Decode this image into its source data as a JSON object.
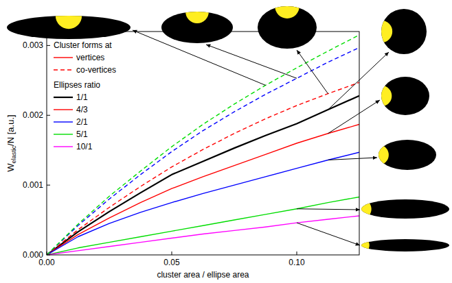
{
  "chart_data": {
    "type": "line",
    "xlabel": "cluster area / ellipse area",
    "ylabel": [
      {
        "text": "W"
      },
      {
        "text": "elastic",
        "sub": true
      },
      {
        "text": "/N [a.u.]"
      }
    ],
    "x": [
      0,
      0.0125,
      0.025,
      0.0375,
      0.05,
      0.0625,
      0.075,
      0.0875,
      0.1,
      0.1125,
      0.125
    ],
    "xlim": [
      0,
      0.125
    ],
    "xticks": [
      {
        "value": 0,
        "label": "0.00"
      },
      0.05,
      {
        "value": 0.1,
        "label": "0.10"
      }
    ],
    "ylim": [
      0,
      0.0032
    ],
    "yticks": [
      {
        "value": 0,
        "label": "0.000"
      },
      {
        "value": 0.001,
        "label": "0.001"
      },
      {
        "value": 0.002,
        "label": "0.002"
      },
      {
        "value": 0.003,
        "label": "0.003"
      }
    ],
    "grid": false,
    "legend": "upper left",
    "legend_sections": [
      {
        "title": "Cluster forms at",
        "entries": [
          {
            "name": "vertices",
            "color": "#ff0000",
            "line_style": "solid"
          },
          {
            "name": "co-vertices",
            "color": "#ff0000",
            "line_style": "dashed"
          }
        ]
      },
      {
        "title": "Ellipses ratio"
      }
    ],
    "series": [
      {
        "name": "1/1",
        "color": "#000000",
        "line_style": "solid",
        "values": [
          0,
          0.00033,
          0.00062,
          0.00089,
          0.00115,
          0.00134,
          0.00153,
          0.00171,
          0.00188,
          0.00208,
          0.00228
        ]
      },
      {
        "name": "4/3",
        "color": "#ff0000",
        "line_style": "solid",
        "values": [
          0,
          0.00029,
          0.00053,
          0.00075,
          0.00095,
          0.00112,
          0.00128,
          0.00144,
          0.0016,
          0.00174,
          0.00187
        ]
      },
      {
        "name": "2/1",
        "color": "#0000ff",
        "line_style": "solid",
        "values": [
          0,
          0.00026,
          0.00045,
          0.00061,
          0.00075,
          0.00088,
          0.001,
          0.00112,
          0.00124,
          0.00136,
          0.00147
        ]
      },
      {
        "name": "5/1",
        "color": "#00dd00",
        "line_style": "solid",
        "values": [
          0,
          0.0001,
          0.00018,
          0.00026,
          0.00034,
          0.00042,
          0.0005,
          0.00058,
          0.00066,
          0.00075,
          0.00083
        ]
      },
      {
        "name": "10/1",
        "color": "#ff00ff",
        "line_style": "solid",
        "values": [
          0,
          6e-05,
          0.00012,
          0.00018,
          0.00024,
          0.0003,
          0.00035,
          0.0004,
          0.00046,
          0.00051,
          0.00056
        ]
      },
      {
        "name": "4/3",
        "color": "#ff0000",
        "line_style": "dashed",
        "values": [
          0,
          0.00036,
          0.00068,
          0.00098,
          0.00126,
          0.00151,
          0.00174,
          0.00195,
          0.00214,
          0.00231,
          0.00247
        ]
      },
      {
        "name": "2/1",
        "color": "#0000ff",
        "line_style": "dashed",
        "values": [
          0,
          0.00042,
          0.0008,
          0.00115,
          0.00148,
          0.00178,
          0.00205,
          0.0023,
          0.00253,
          0.00276,
          0.00297
        ]
      },
      {
        "name": "5/1",
        "color": "#00dd00",
        "line_style": "dashed",
        "values": [
          0,
          0.00044,
          0.00084,
          0.0012,
          0.00155,
          0.00187,
          0.00216,
          0.00243,
          0.00268,
          0.00292,
          0.00315
        ]
      }
    ]
  }
}
